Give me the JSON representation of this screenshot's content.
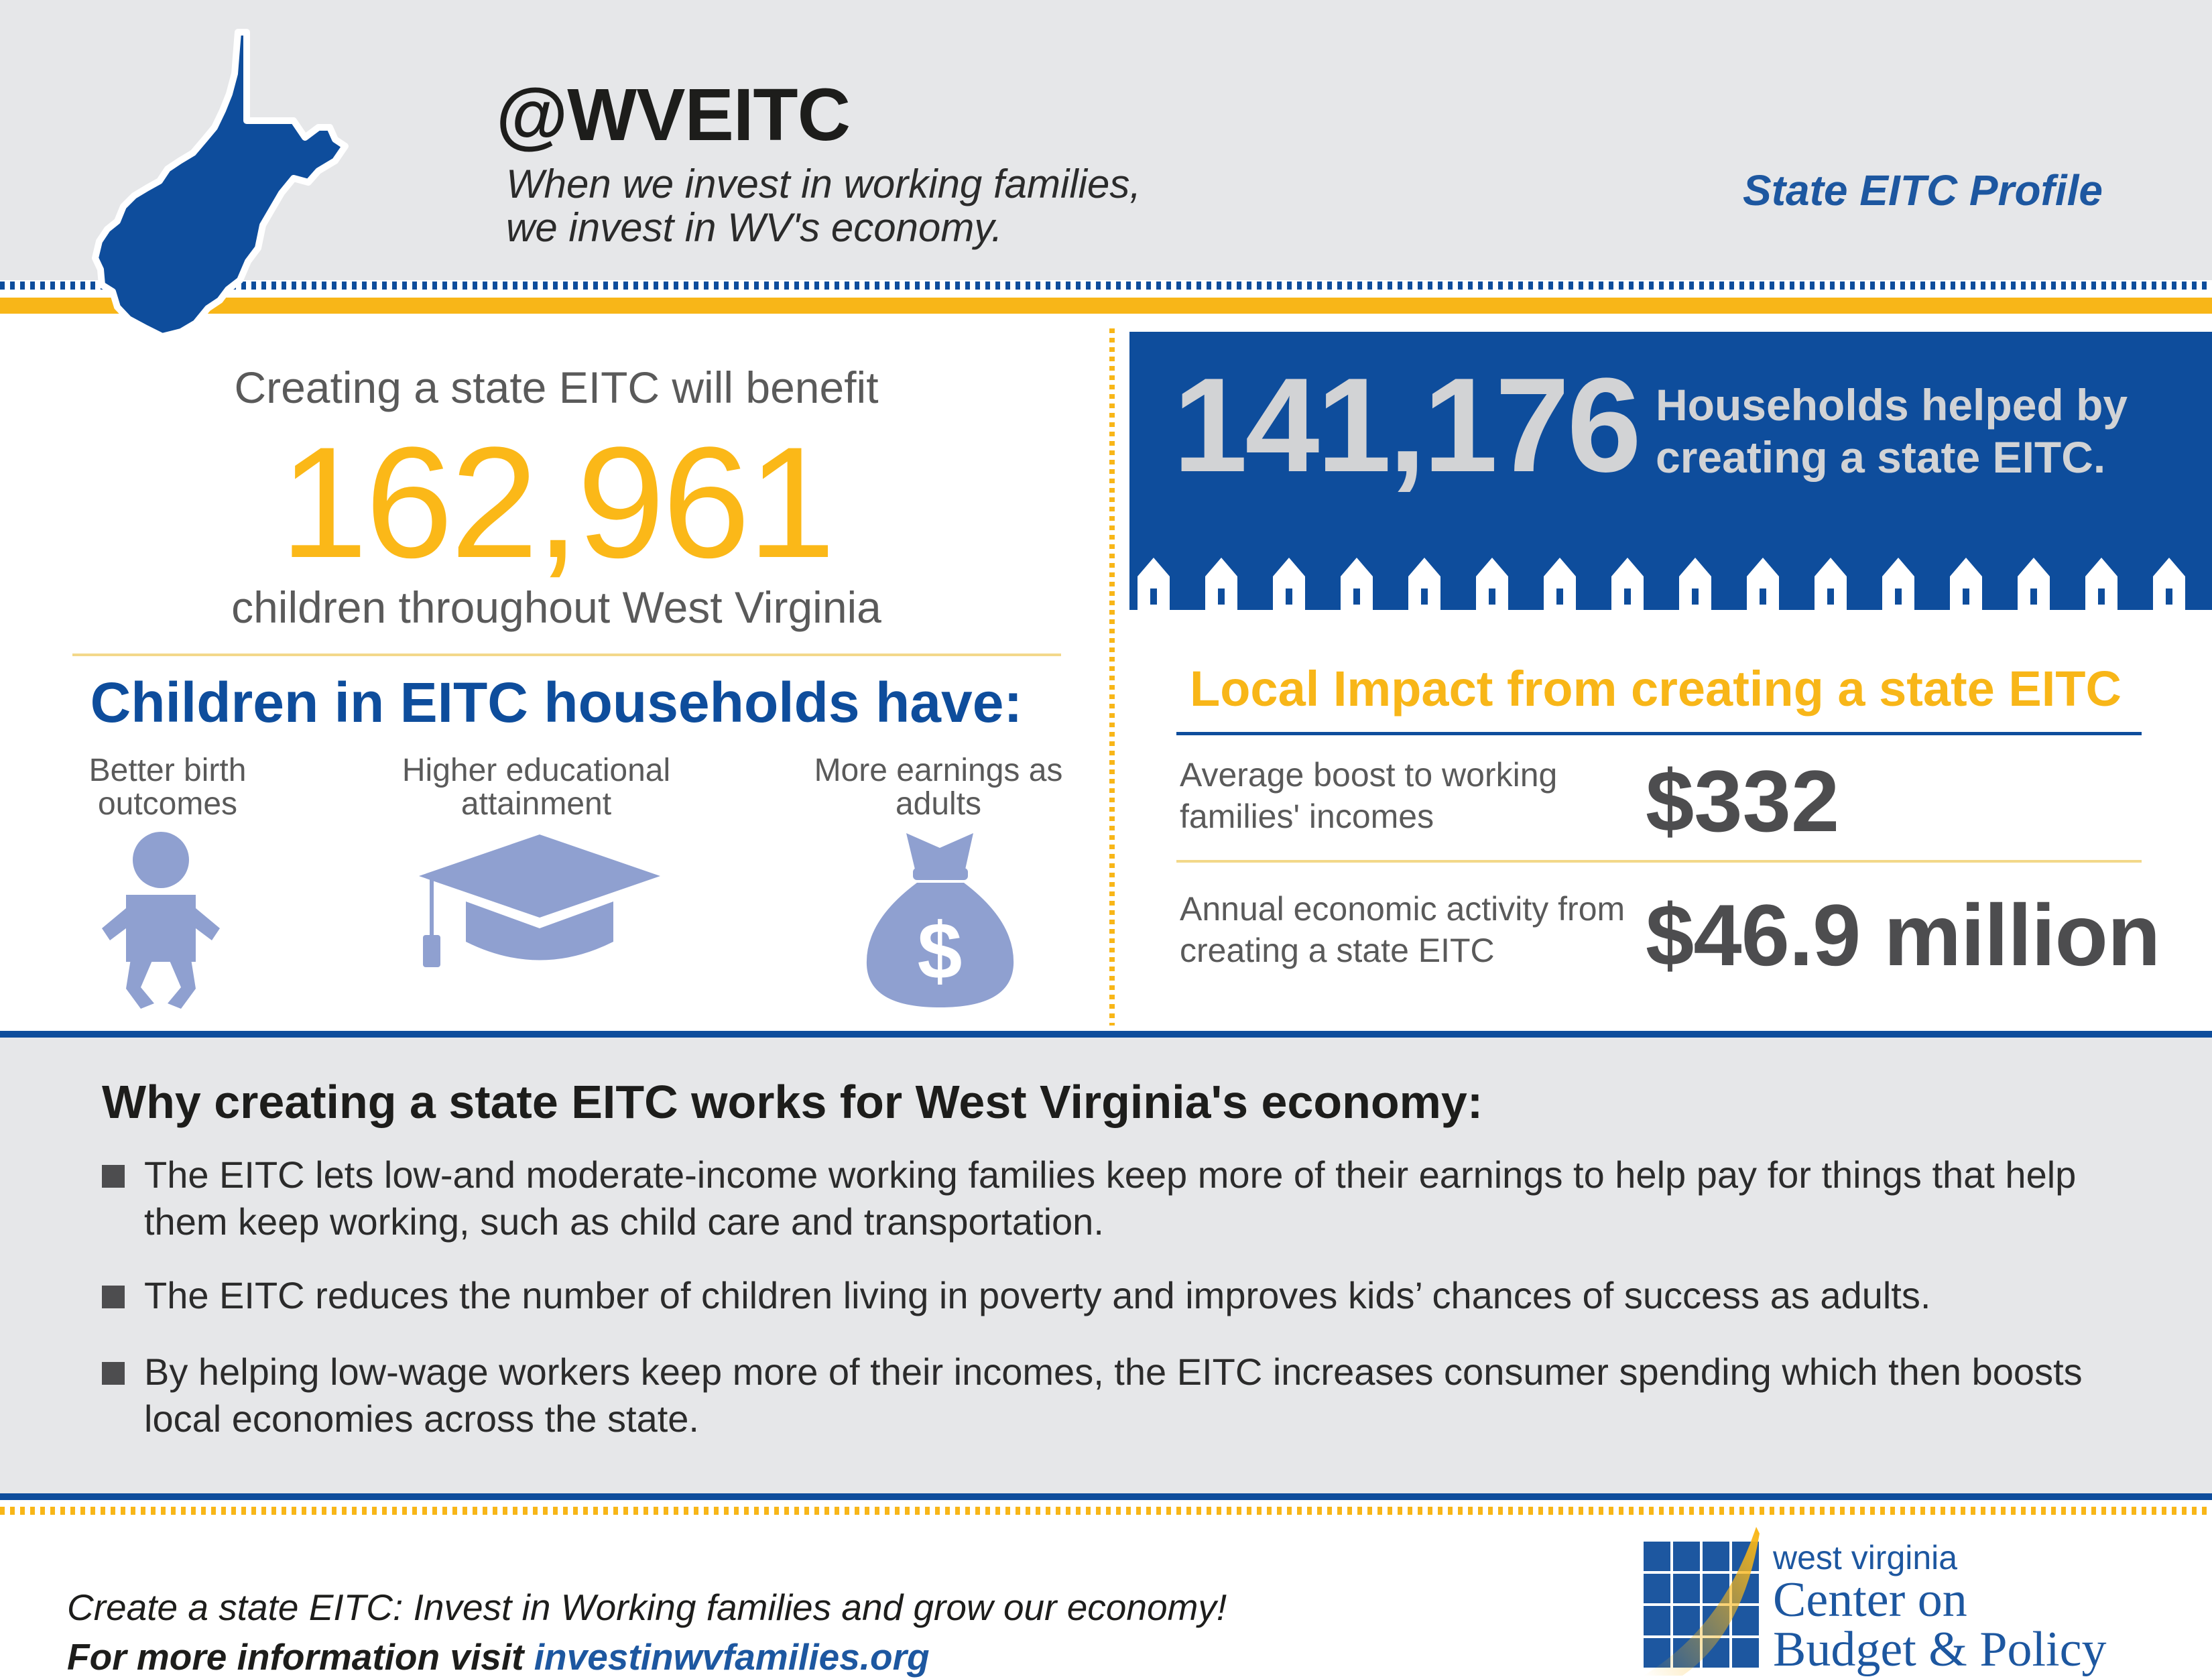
{
  "header": {
    "handle": "@WVEITC",
    "tagline_line1": "When we invest in working families,",
    "tagline_line2": "we invest in WV's economy.",
    "profile_label": "State EITC Profile"
  },
  "children_benefit": {
    "intro": "Creating a state EITC will benefit",
    "number": "162,961",
    "outro": "children throughout West Virginia"
  },
  "children_outcomes": {
    "heading": "Children in EITC households have:",
    "items": [
      {
        "label": "Better birth outcomes",
        "icon": "baby-icon"
      },
      {
        "label": "Higher educational attainment",
        "icon": "graduation-cap-icon"
      },
      {
        "label": "More earnings as adults",
        "icon": "money-bag-icon"
      }
    ]
  },
  "households": {
    "number": "141,176",
    "text": "Households helped by creating a state EITC."
  },
  "local_impact": {
    "heading": "Local Impact from creating a state EITC",
    "rows": [
      {
        "label": "Average boost to working families' incomes",
        "value": "$332"
      },
      {
        "label": "Annual economic activity from creating a state EITC",
        "value": "$46.9 million"
      }
    ]
  },
  "why": {
    "heading": "Why creating a state EITC works for West Virginia's economy:",
    "bullets": [
      "The EITC lets low-and moderate-income working families keep more of their earnings to help pay for things that help them keep working, such as child care and transportation.",
      "The EITC reduces the number of children living in poverty and improves kids’ chances of success as adults.",
      "By helping low-wage workers keep more of their incomes, the EITC increases consumer spending which then boosts local economies across the state."
    ]
  },
  "footer": {
    "cta": "Create a state EITC: Invest in Working families and grow our economy!",
    "more_prefix": "For more information visit ",
    "more_link": "investinwvfamilies.org",
    "logo_line1": "west virginia",
    "logo_line2": "Center on",
    "logo_line3": "Budget & Policy"
  },
  "colors": {
    "navy": "#0e4d9c",
    "gold": "#f8b618",
    "gray_bg": "#e6e7e9",
    "icon_lavender": "#8fa0d0"
  }
}
